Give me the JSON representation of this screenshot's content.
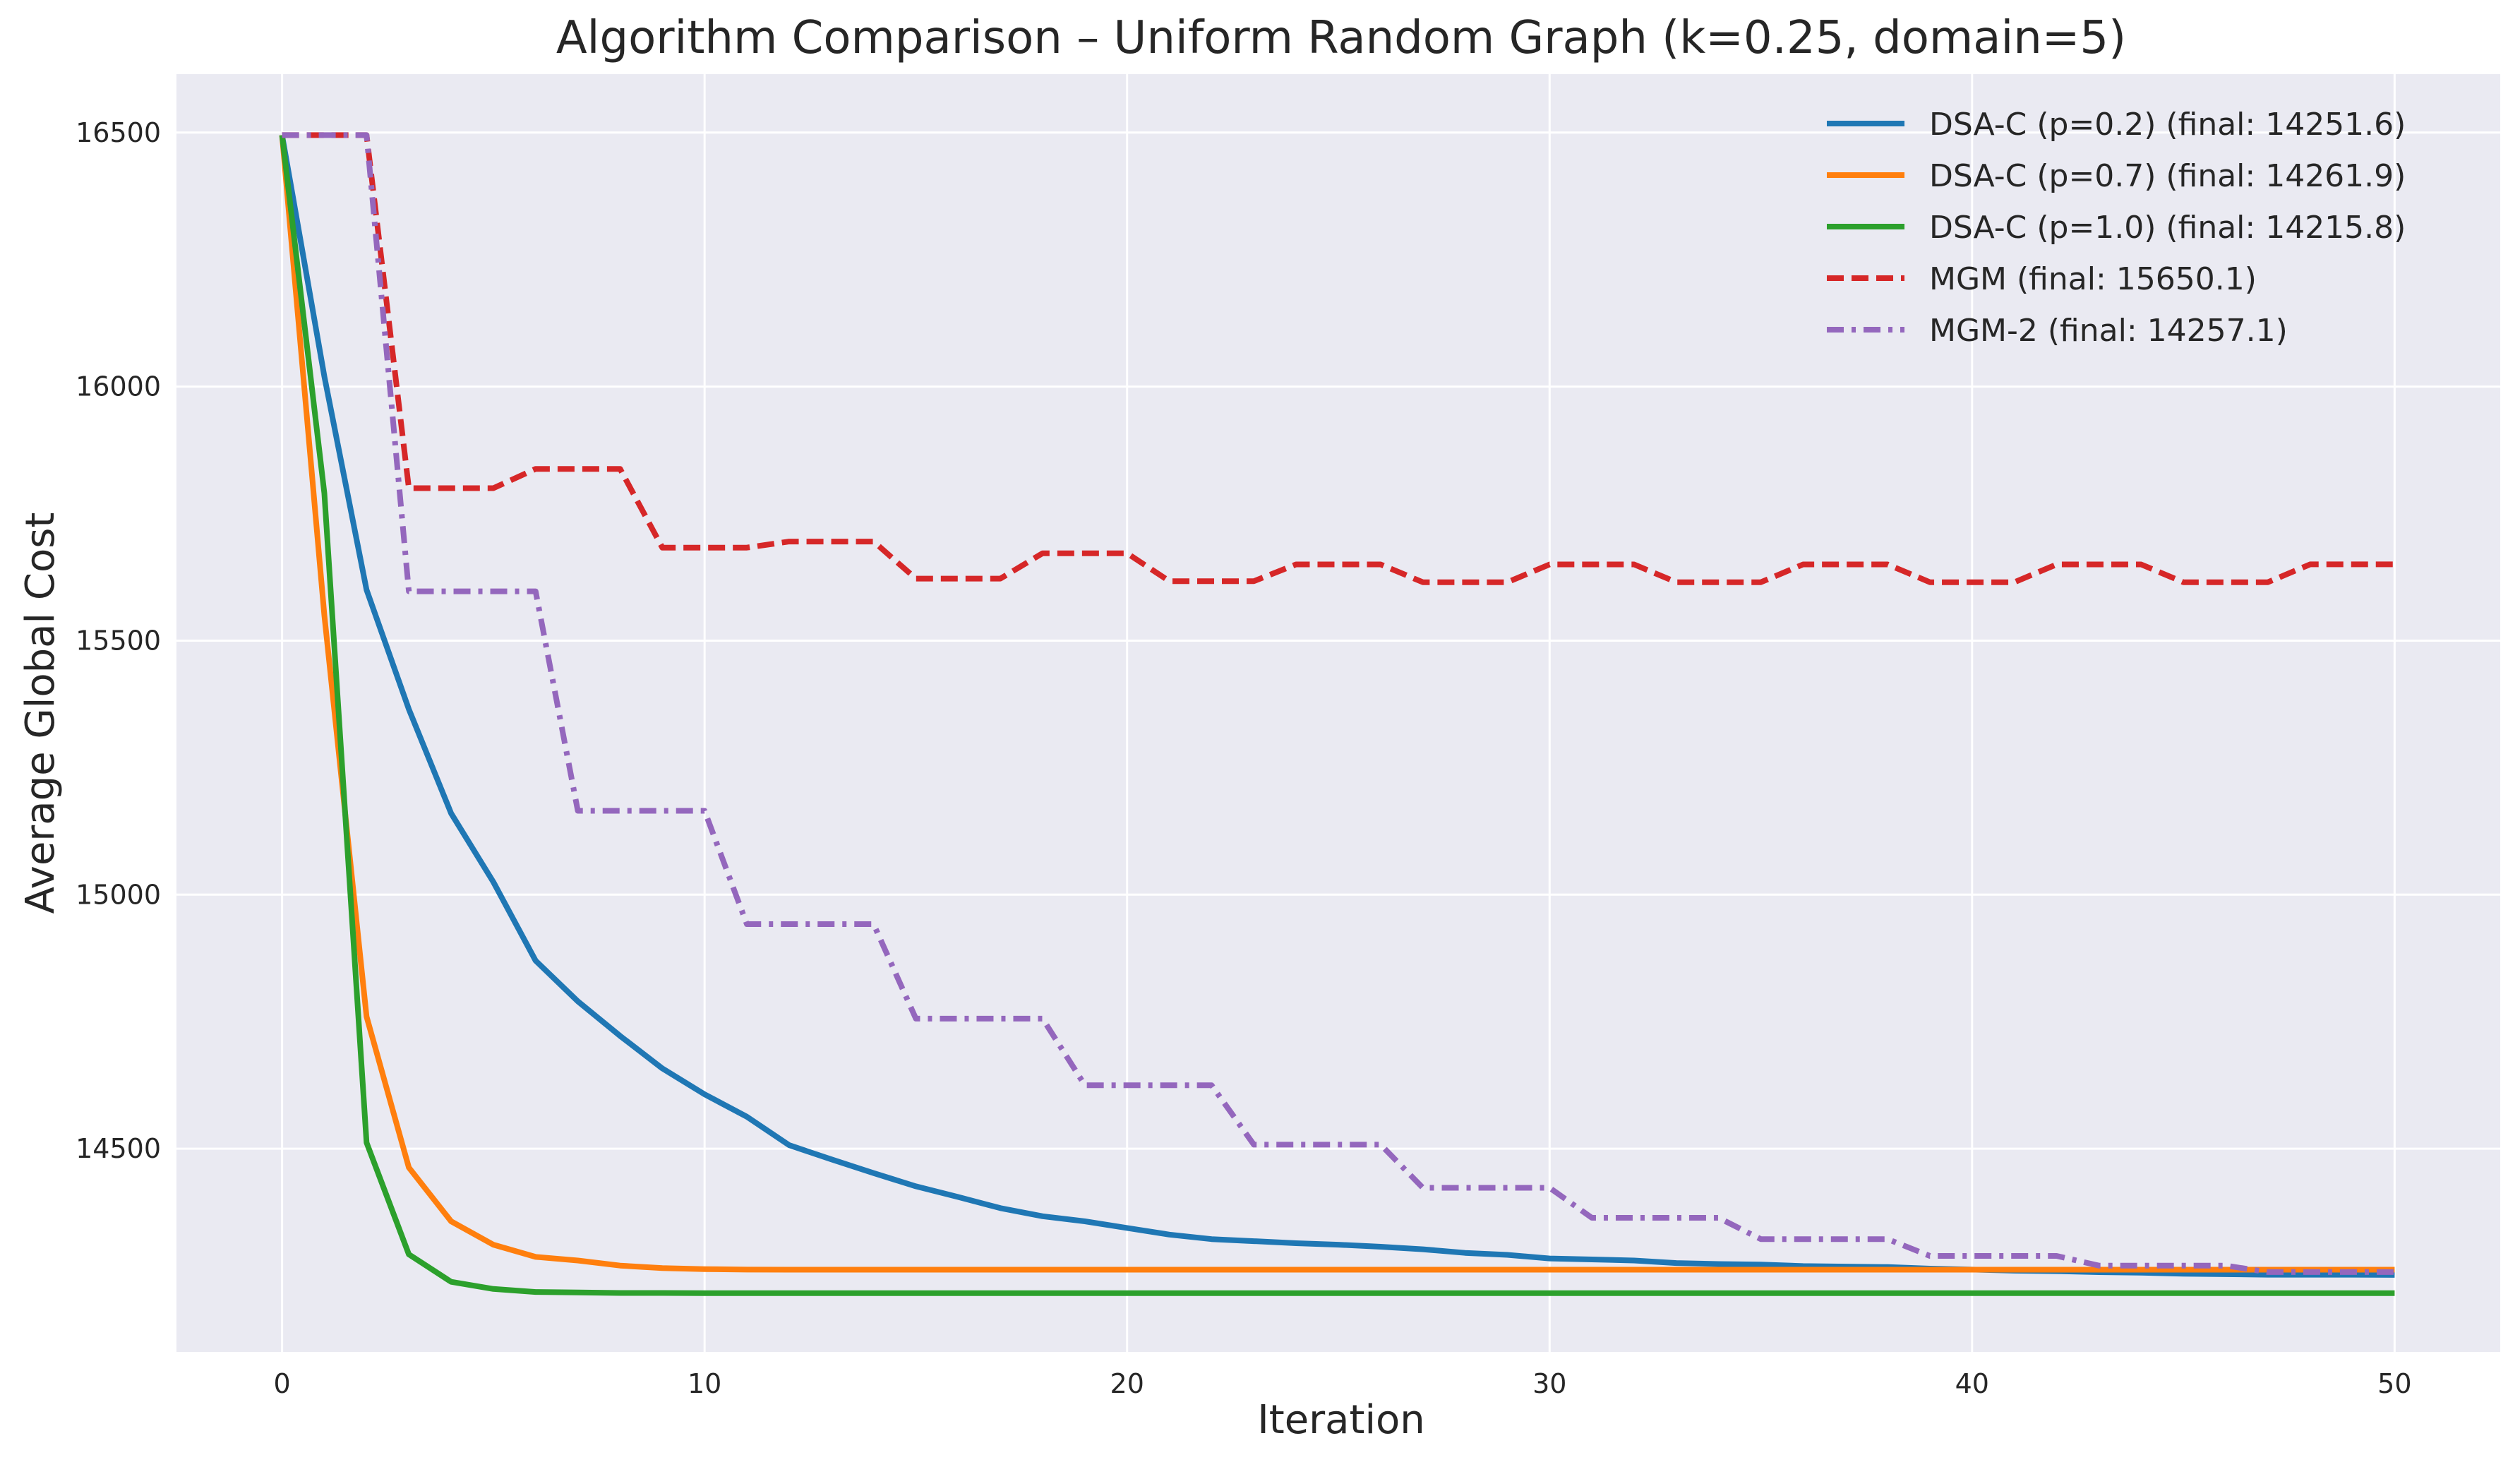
{
  "chart_data": {
    "type": "line",
    "title": "Algorithm Comparison – Uniform Random Graph (k=0.25, domain=5)",
    "xlabel": "Iteration",
    "ylabel": "Average Global Cost",
    "xlim": [
      -2.5,
      52.5
    ],
    "ylim": [
      14100,
      16615
    ],
    "xticks": [
      0,
      10,
      20,
      30,
      40,
      50
    ],
    "yticks": [
      14500,
      15000,
      15500,
      16000,
      16500
    ],
    "grid": true,
    "legend_position": "top-right",
    "x": [
      0,
      1,
      2,
      3,
      4,
      5,
      6,
      7,
      8,
      9,
      10,
      11,
      12,
      13,
      14,
      15,
      16,
      17,
      18,
      19,
      20,
      21,
      22,
      23,
      24,
      25,
      26,
      27,
      28,
      29,
      30,
      31,
      32,
      33,
      34,
      35,
      36,
      37,
      38,
      39,
      40,
      41,
      42,
      43,
      44,
      45,
      46,
      47,
      48,
      49,
      50
    ],
    "series": [
      {
        "name": "DSA-C (p=0.2) (final: 14251.6)",
        "color": "#1f77b4",
        "style": "solid",
        "values": [
          16495,
          16020,
          15600,
          15365,
          15160,
          15025,
          14870,
          14790,
          14722,
          14658,
          14607,
          14563,
          14507,
          14479,
          14452,
          14426,
          14405,
          14383,
          14367,
          14357,
          14344,
          14331,
          14322,
          14318,
          14314,
          14311,
          14307,
          14302,
          14295,
          14291,
          14284,
          14282,
          14280,
          14275,
          14273,
          14272,
          14269,
          14268,
          14267,
          14264,
          14262,
          14260,
          14259,
          14257,
          14256,
          14254,
          14253,
          14252,
          14252,
          14252,
          14251.6
        ]
      },
      {
        "name": "DSA-C (p=0.7) (final: 14261.9)",
        "color": "#ff7f0e",
        "style": "solid",
        "values": [
          16495,
          15550,
          14760,
          14463,
          14357,
          14311,
          14287,
          14280,
          14270,
          14265,
          14263,
          14262,
          14261.9,
          14261.9,
          14261.9,
          14261.9,
          14261.9,
          14261.9,
          14261.9,
          14261.9,
          14261.9,
          14261.9,
          14261.9,
          14261.9,
          14261.9,
          14261.9,
          14261.9,
          14261.9,
          14261.9,
          14261.9,
          14261.9,
          14261.9,
          14261.9,
          14261.9,
          14261.9,
          14261.9,
          14261.9,
          14261.9,
          14261.9,
          14261.9,
          14261.9,
          14261.9,
          14261.9,
          14261.9,
          14261.9,
          14261.9,
          14261.9,
          14261.9,
          14261.9,
          14261.9,
          14261.9
        ]
      },
      {
        "name": "DSA-C (p=1.0) (final: 14215.8)",
        "color": "#2ca02c",
        "style": "solid",
        "values": [
          16495,
          15790,
          14512,
          14292,
          14238,
          14224,
          14218,
          14217,
          14216,
          14216,
          14215.8,
          14215.8,
          14215.8,
          14215.8,
          14215.8,
          14215.8,
          14215.8,
          14215.8,
          14215.8,
          14215.8,
          14215.8,
          14215.8,
          14215.8,
          14215.8,
          14215.8,
          14215.8,
          14215.8,
          14215.8,
          14215.8,
          14215.8,
          14215.8,
          14215.8,
          14215.8,
          14215.8,
          14215.8,
          14215.8,
          14215.8,
          14215.8,
          14215.8,
          14215.8,
          14215.8,
          14215.8,
          14215.8,
          14215.8,
          14215.8,
          14215.8,
          14215.8,
          14215.8,
          14215.8,
          14215.8,
          14215.8
        ]
      },
      {
        "name": "MGM (final: 15650.1)",
        "color": "#d62728",
        "style": "dashed",
        "values": [
          16495,
          16495,
          16495,
          15800,
          15800,
          15800,
          15838,
          15838,
          15838,
          15683,
          15683,
          15683,
          15695,
          15695,
          15695,
          15622,
          15622,
          15622,
          15672,
          15672,
          15672,
          15617,
          15617,
          15617,
          15650,
          15650,
          15650,
          15615,
          15615,
          15615,
          15650,
          15650,
          15650,
          15615,
          15615,
          15615,
          15650,
          15650,
          15650,
          15615,
          15615,
          15615,
          15650,
          15650,
          15650,
          15615,
          15615,
          15615,
          15650.1,
          15650.1,
          15650.1
        ]
      },
      {
        "name": "MGM-2 (final: 14257.1)",
        "color": "#9467bd",
        "style": "dashdot",
        "values": [
          16495,
          16495,
          16495,
          15597,
          15597,
          15597,
          15597,
          15165,
          15165,
          15165,
          15165,
          14942,
          14942,
          14942,
          14942,
          14756,
          14756,
          14756,
          14756,
          14625,
          14625,
          14625,
          14625,
          14508,
          14508,
          14508,
          14508,
          14423,
          14423,
          14423,
          14423,
          14364,
          14364,
          14364,
          14364,
          14322,
          14322,
          14322,
          14322,
          14289,
          14289,
          14289,
          14289,
          14270,
          14270,
          14270,
          14270,
          14257.1,
          14257.1,
          14257.1,
          14257.1
        ]
      }
    ]
  }
}
